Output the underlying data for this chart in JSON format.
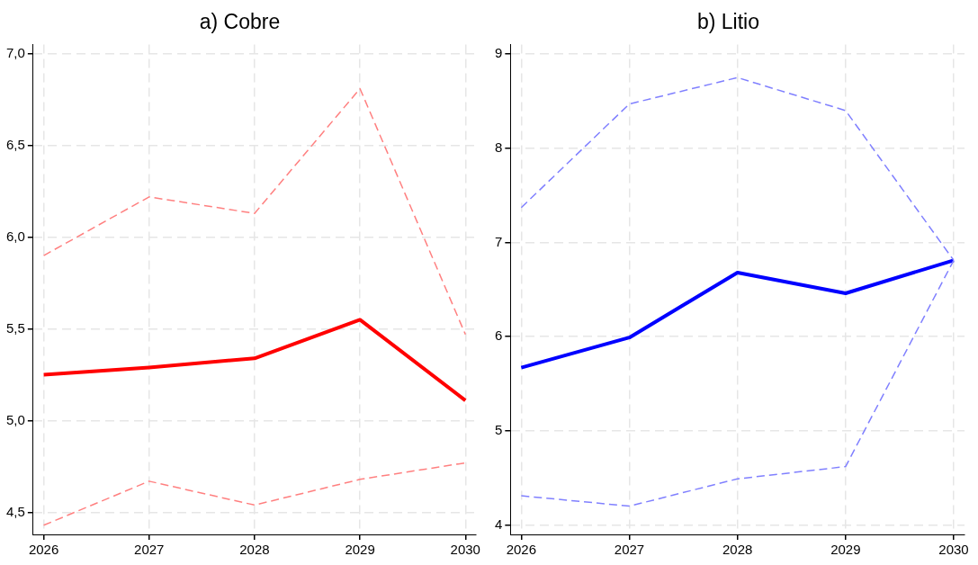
{
  "chart_data": [
    {
      "type": "line",
      "title": "a) Cobre",
      "x": [
        2026,
        2027,
        2028,
        2029,
        2030
      ],
      "xlim": [
        2025.9,
        2030.1
      ],
      "xticks": [
        2026,
        2027,
        2028,
        2029,
        2030
      ],
      "ylim": [
        4.38,
        7.05
      ],
      "yticks": [
        {
          "value": 4.5,
          "label": "4,5"
        },
        {
          "value": 5,
          "label": "5,0"
        },
        {
          "value": 5.5,
          "label": "5,5"
        },
        {
          "value": 6,
          "label": "6,0"
        },
        {
          "value": 6.5,
          "label": "6,5"
        },
        {
          "value": 7,
          "label": "7,0"
        }
      ],
      "grid": true,
      "legend": false,
      "series": [
        {
          "color": "#ff8080",
          "line_style": "dashed",
          "values": [
            5.9,
            6.22,
            6.13,
            6.81,
            5.47
          ]
        },
        {
          "color": "#ff8080",
          "line_style": "dashed",
          "values": [
            4.43,
            4.67,
            4.54,
            4.68,
            4.77
          ]
        },
        {
          "color": "#ff0000",
          "line_style": "solid",
          "values": [
            5.25,
            5.29,
            5.34,
            5.55,
            5.11
          ]
        }
      ]
    },
    {
      "type": "line",
      "title": "b) Litio",
      "x": [
        2026,
        2027,
        2028,
        2029,
        2030
      ],
      "xlim": [
        2025.9,
        2030.1
      ],
      "xticks": [
        2026,
        2027,
        2028,
        2029,
        2030
      ],
      "ylim": [
        3.9,
        9.1
      ],
      "yticks": [
        4,
        5,
        6,
        7,
        8,
        9
      ],
      "grid": true,
      "legend": false,
      "series": [
        {
          "color": "#8080ff",
          "line_style": "dashed",
          "values": [
            7.37,
            8.47,
            8.75,
            8.4,
            6.81
          ]
        },
        {
          "color": "#8080ff",
          "line_style": "dashed",
          "values": [
            4.31,
            4.2,
            4.49,
            4.62,
            6.81
          ]
        },
        {
          "color": "#0000ff",
          "line_style": "solid",
          "values": [
            5.67,
            5.99,
            6.68,
            6.46,
            6.81
          ]
        }
      ]
    }
  ]
}
